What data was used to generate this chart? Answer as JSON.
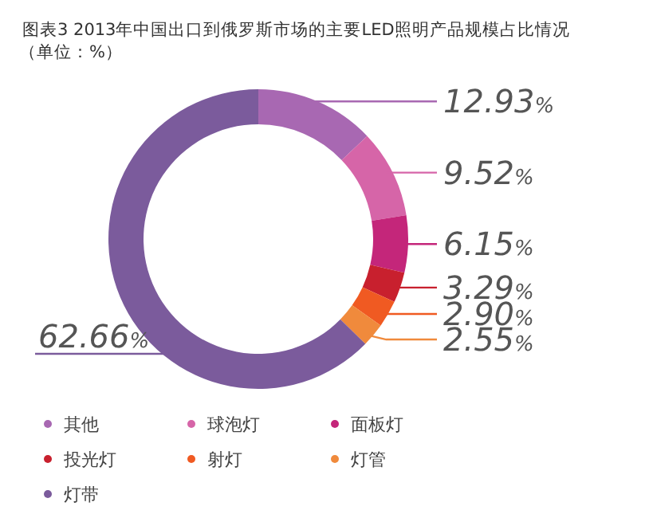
{
  "chart_data": {
    "type": "donut",
    "title": "图表3  2013年中国出口到俄罗斯市场的主要LED照明产品规模占比情况",
    "subtitle": "（单位：%）",
    "categories": [
      "其他",
      "球泡灯",
      "面板灯",
      "投光灯",
      "射灯",
      "灯管",
      "灯带"
    ],
    "values": [
      12.93,
      9.52,
      6.15,
      3.29,
      2.9,
      2.55,
      62.66
    ],
    "colors": [
      "#a868b2",
      "#d665a8",
      "#c4267a",
      "#c8202e",
      "#f05a22",
      "#f08a3c",
      "#7b5b9c"
    ],
    "value_labels": [
      "12.93%",
      "9.52%",
      "6.15%",
      "3.29%",
      "2.90%",
      "2.55%",
      "62.66%"
    ],
    "legend": "bottom"
  }
}
